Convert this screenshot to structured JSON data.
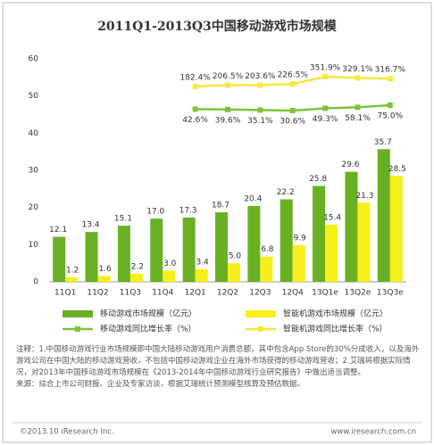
{
  "chart_data": {
    "type": "bar",
    "title": "2011Q1-2013Q3中国移动游戏市场规模",
    "categories": [
      "11Q1",
      "11Q2",
      "11Q3",
      "11Q4",
      "12Q1",
      "12Q2",
      "12Q3",
      "12Q4",
      "13Q1e",
      "13Q2e",
      "13Q3e"
    ],
    "series": [
      {
        "name": "移动游戏市场规模（亿元）",
        "type": "bar",
        "color": "#6ab023",
        "values": [
          12.1,
          13.4,
          15.1,
          17.0,
          17.3,
          18.7,
          20.4,
          22.2,
          25.8,
          29.6,
          35.7
        ],
        "value_labels": [
          "12.1",
          "13.4",
          "15.1",
          "17.0",
          "17.3",
          "18.7",
          "20.4",
          "22.2",
          "25.8",
          "29.6",
          "35.7"
        ]
      },
      {
        "name": "智能机游戏市场规模（亿元）",
        "type": "bar",
        "color": "#f7ef1a",
        "values": [
          1.2,
          1.6,
          2.2,
          3.0,
          3.4,
          5.0,
          6.8,
          9.9,
          15.4,
          21.3,
          28.5
        ],
        "value_labels": [
          "1.2",
          "1.6",
          "2.2",
          "3.0",
          "3.4",
          "5.0",
          "6.8",
          "9.9",
          "15.4",
          "21.3",
          "28.5"
        ]
      },
      {
        "name": "移动游戏同比增长率（%）",
        "type": "line",
        "axis": "y3",
        "color": "#7cc43a",
        "values": [
          null,
          null,
          null,
          null,
          42.6,
          39.6,
          35.1,
          30.6,
          49.3,
          58.1,
          75.0
        ],
        "value_labels": [
          null,
          null,
          null,
          null,
          "42.6%",
          "39.6%",
          "35.1%",
          "30.6%",
          "49.3%",
          "58.1%",
          "75.0%"
        ]
      },
      {
        "name": "智能机游戏同比增长率（%）",
        "type": "line",
        "axis": "y2",
        "color": "#f3e93a",
        "values": [
          null,
          null,
          null,
          null,
          182.4,
          206.5,
          203.6,
          226.5,
          351.9,
          329.1,
          316.7
        ],
        "value_labels": [
          null,
          null,
          null,
          null,
          "182.4%",
          "206.5%",
          "203.6%",
          "226.5%",
          "351.9%",
          "329.1%",
          "316.7%"
        ]
      }
    ],
    "ylim": [
      0,
      60
    ],
    "yticks": [
      0,
      10,
      20,
      30,
      40,
      50,
      60
    ],
    "y2lim": [
      -3200,
      660
    ],
    "y3lim": [
      -1390,
      460
    ],
    "grid": false
  },
  "notes": [
    "注释：1.中国移动游戏行业市场规模即中国大陆移动游戏用户消费总额，其中包含App Store的30%分成收入，以及海外游戏公司在中国大陆的移动游戏营收，不包括中国移动游戏企业在海外市场获得的移动游戏营收；2.艾瑞将根据实际情况，对2013年中国移动游戏市场规模在《2013-2014年中国移动游戏行业研究报告》中做出适当调整。",
    "来源：综合上市公司财报、企业及专家访谈，根据艾瑞统计预测模型核算及预估数据。"
  ],
  "footer": {
    "left": "©2013.10 iResearch Inc.",
    "right": "www.iresearch.com.cn"
  }
}
